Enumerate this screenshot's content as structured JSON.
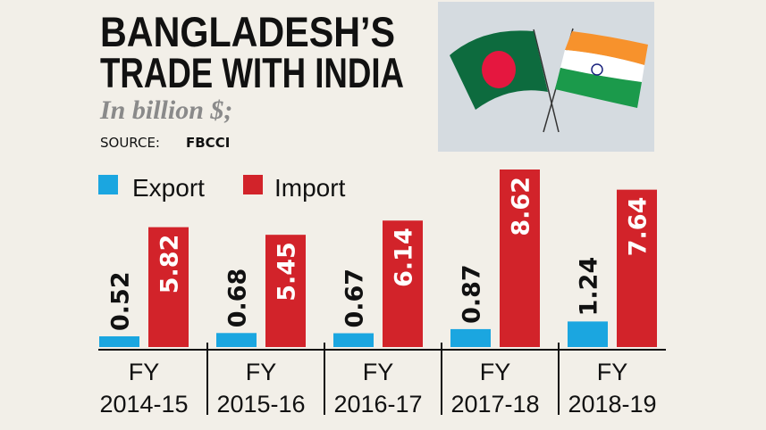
{
  "header": {
    "title_line1": "BANGLADESH’S",
    "title_line2": "TRADE WITH INDIA",
    "subtitle": "In billion $;",
    "source_label": "SOURCE:",
    "source_name": "FBCCI"
  },
  "image": {
    "description_icon": "crossed-flags-bangladesh-india"
  },
  "chart_data": {
    "type": "bar",
    "categories": [
      [
        "FY",
        "2014-15"
      ],
      [
        "FY",
        "2015-16"
      ],
      [
        "FY",
        "2016-17"
      ],
      [
        "FY",
        "2017-18"
      ],
      [
        "FY",
        "2018-19"
      ]
    ],
    "series": [
      {
        "name": "Export",
        "color": "#1ba6e0",
        "values": [
          0.52,
          0.68,
          0.67,
          0.87,
          1.24
        ],
        "labels": [
          "0.52",
          "0.68",
          "0.67",
          "0.87",
          "1.24"
        ]
      },
      {
        "name": "Import",
        "color": "#d2232a",
        "values": [
          5.82,
          5.45,
          6.14,
          8.62,
          7.64
        ],
        "labels": [
          "5.82",
          "5.45",
          "6.14",
          "8.62",
          "7.64"
        ]
      }
    ],
    "legend_placement": "top-left",
    "grid": false,
    "ylim": [
      0,
      8.62
    ]
  }
}
